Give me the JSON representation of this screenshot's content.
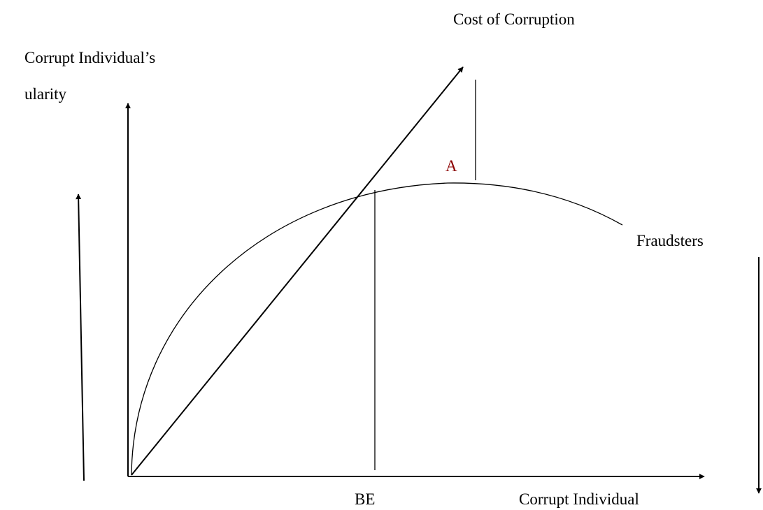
{
  "labels": {
    "cost_of_corruption": "Cost of Corruption",
    "y_axis_line1": "Corrupt Individual’s",
    "y_axis_line2": "ularity",
    "point_a": "A",
    "curve": "Fraudsters",
    "break_even": "BE",
    "x_axis": "Corrupt Individual"
  }
}
